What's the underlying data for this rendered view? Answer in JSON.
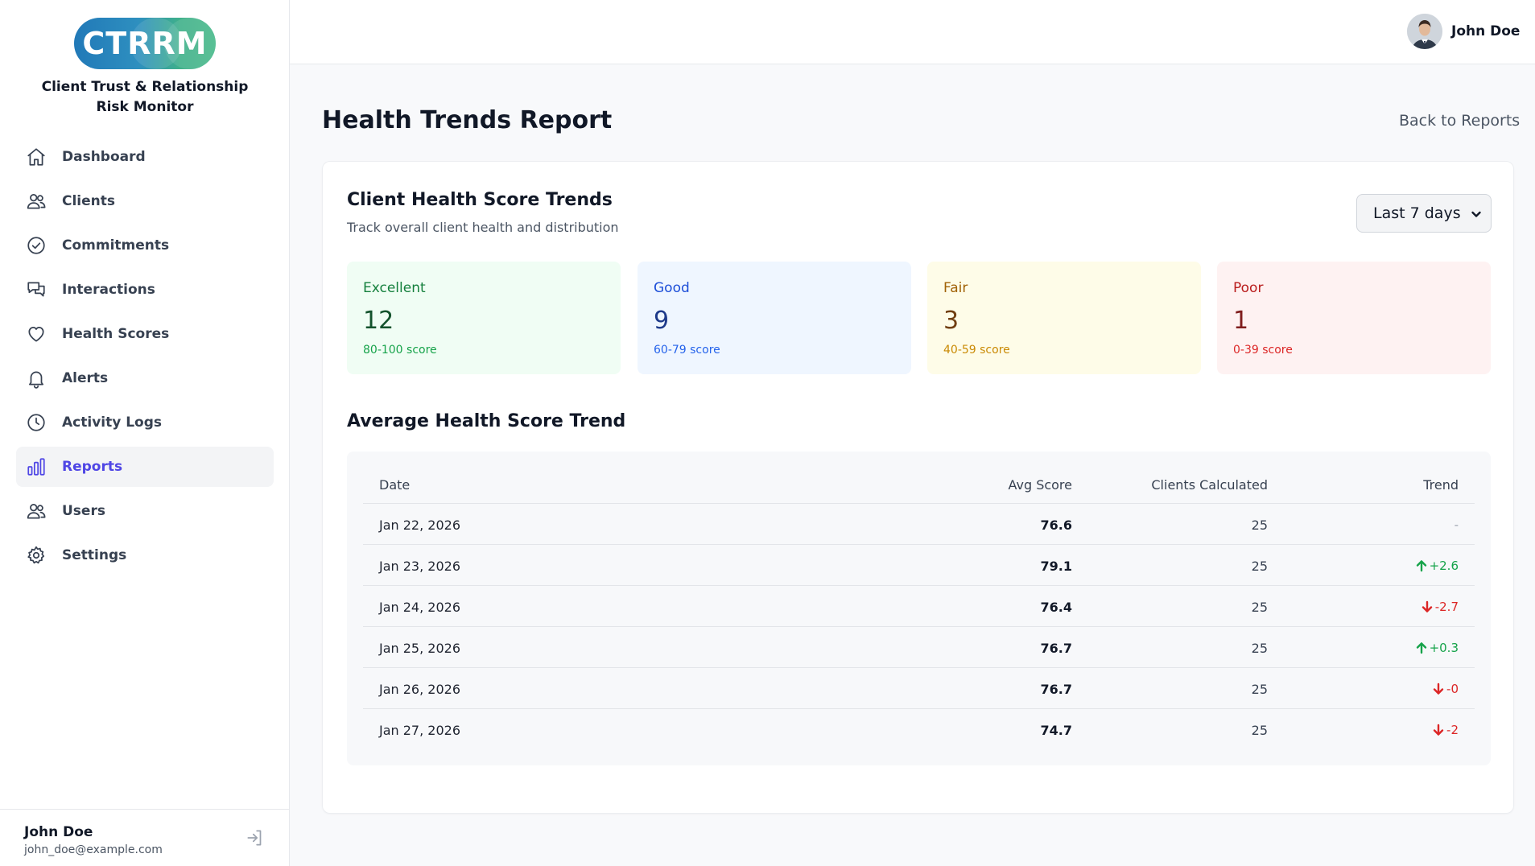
{
  "brand": {
    "logo_text": "CTRRM",
    "app_name": "Client Trust & Relationship Risk Monitor"
  },
  "sidebar": {
    "items": [
      {
        "label": "Dashboard",
        "icon": "home-icon"
      },
      {
        "label": "Clients",
        "icon": "users-icon"
      },
      {
        "label": "Commitments",
        "icon": "check-circle-icon"
      },
      {
        "label": "Interactions",
        "icon": "chat-bubbles-icon"
      },
      {
        "label": "Health Scores",
        "icon": "heart-icon"
      },
      {
        "label": "Alerts",
        "icon": "bell-icon"
      },
      {
        "label": "Activity Logs",
        "icon": "clock-icon"
      },
      {
        "label": "Reports",
        "icon": "bar-chart-icon",
        "active": true
      },
      {
        "label": "Users",
        "icon": "users-icon"
      },
      {
        "label": "Settings",
        "icon": "gear-icon"
      }
    ],
    "footer": {
      "name": "John Doe",
      "email": "john_doe@example.com"
    }
  },
  "topbar": {
    "user_name": "John Doe"
  },
  "page": {
    "title": "Health Trends Report",
    "back_link": "Back to Reports"
  },
  "card": {
    "title": "Client Health Score Trends",
    "subtitle": "Track overall client health and distribution",
    "range_select": "Last 7 days",
    "stats": [
      {
        "label": "Excellent",
        "value": "12",
        "range": "80-100 score",
        "bg": "#f0fdf4",
        "label_color": "#15803d",
        "value_color": "#14532d",
        "range_color": "#16a34a"
      },
      {
        "label": "Good",
        "value": "9",
        "range": "60-79 score",
        "bg": "#eff6ff",
        "label_color": "#1d4ed8",
        "value_color": "#1e3a8a",
        "range_color": "#2563eb"
      },
      {
        "label": "Fair",
        "value": "3",
        "range": "40-59 score",
        "bg": "#fefce8",
        "label_color": "#a16207",
        "value_color": "#713f12",
        "range_color": "#ca8a04"
      },
      {
        "label": "Poor",
        "value": "1",
        "range": "0-39 score",
        "bg": "#fef2f2",
        "label_color": "#b91c1c",
        "value_color": "#7f1d1d",
        "range_color": "#dc2626"
      }
    ],
    "section_title": "Average Health Score Trend",
    "table": {
      "headers": {
        "date": "Date",
        "avg": "Avg Score",
        "clients": "Clients Calculated",
        "trend": "Trend"
      },
      "rows": [
        {
          "date": "Jan 22, 2026",
          "avg": "76.6",
          "clients": "25",
          "trend": "-",
          "dir": "none"
        },
        {
          "date": "Jan 23, 2026",
          "avg": "79.1",
          "clients": "25",
          "trend": "+2.6",
          "dir": "up"
        },
        {
          "date": "Jan 24, 2026",
          "avg": "76.4",
          "clients": "25",
          "trend": "-2.7",
          "dir": "down"
        },
        {
          "date": "Jan 25, 2026",
          "avg": "76.7",
          "clients": "25",
          "trend": "+0.3",
          "dir": "up"
        },
        {
          "date": "Jan 26, 2026",
          "avg": "76.7",
          "clients": "25",
          "trend": "-0",
          "dir": "down"
        },
        {
          "date": "Jan 27, 2026",
          "avg": "74.7",
          "clients": "25",
          "trend": "-2",
          "dir": "down"
        }
      ]
    }
  }
}
